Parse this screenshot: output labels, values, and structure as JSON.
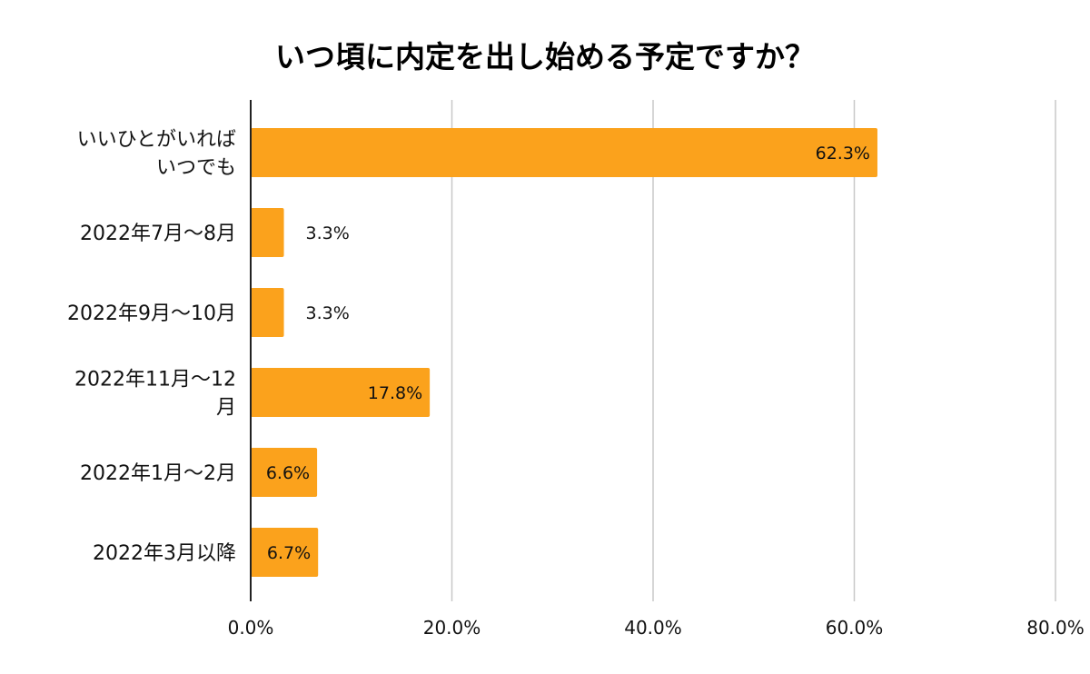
{
  "chart_data": {
    "type": "bar",
    "orientation": "horizontal",
    "title": "いつ頃に内定を出し始める予定ですか？",
    "categories": [
      [
        "いいひとがいれば",
        "いつでも"
      ],
      [
        "2022年7月〜8月"
      ],
      [
        "2022年9月〜10月"
      ],
      [
        "2022年11月〜12",
        "月"
      ],
      [
        "2022年1月〜2月"
      ],
      [
        "2022年3月以降"
      ]
    ],
    "values": [
      62.3,
      3.3,
      3.3,
      17.8,
      6.6,
      6.7
    ],
    "data_labels": [
      "62.3%",
      "3.3%",
      "3.3%",
      "17.8%",
      "6.6%",
      "6.7%"
    ],
    "xlim": [
      0,
      80
    ],
    "ticks": [
      0,
      20,
      40,
      60,
      80
    ],
    "tick_labels": [
      "0.0%",
      "20.0%",
      "40.0%",
      "60.0%",
      "80.0%"
    ],
    "grid": true,
    "legend": "none",
    "bar_color": "#FBA21C"
  }
}
